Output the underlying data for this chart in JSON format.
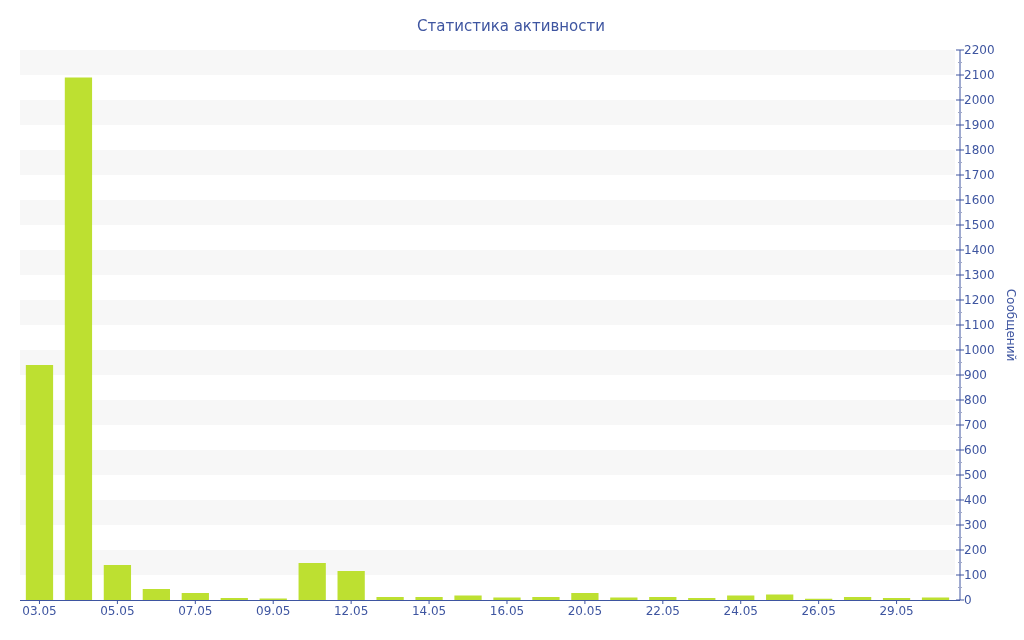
{
  "chart_data": {
    "type": "bar",
    "title": "Статистика активности",
    "ylabel": "Сообщений",
    "categories": [
      "03.05",
      null,
      "05.05",
      null,
      "07.05",
      null,
      "09.05",
      null,
      "12.05",
      null,
      "14.05",
      null,
      "16.05",
      null,
      "20.05",
      null,
      "22.05",
      null,
      "24.05",
      null,
      "26.05",
      null,
      "29.05",
      null
    ],
    "values": [
      940,
      2090,
      140,
      44,
      28,
      8,
      6,
      148,
      116,
      12,
      12,
      18,
      10,
      12,
      28,
      10,
      12,
      8,
      18,
      22,
      5,
      12,
      8,
      10
    ],
    "color": "#bde031",
    "ylim": [
      0,
      2200
    ],
    "yticks": [
      0,
      100,
      200,
      300,
      400,
      500,
      600,
      700,
      800,
      900,
      1000,
      1100,
      1200,
      1300,
      1400,
      1500,
      1600,
      1700,
      1800,
      1900,
      2000,
      2100,
      2200
    ],
    "bands": [
      {
        "axis": "y",
        "from": 100,
        "to": 200,
        "color": "#f7f7f7"
      },
      {
        "axis": "y",
        "from": 300,
        "to": 400,
        "color": "#f7f7f7"
      },
      {
        "axis": "y",
        "from": 500,
        "to": 600,
        "color": "#f7f7f7"
      },
      {
        "axis": "y",
        "from": 700,
        "to": 800,
        "color": "#f7f7f7"
      },
      {
        "axis": "y",
        "from": 900,
        "to": 1000,
        "color": "#f7f7f7"
      },
      {
        "axis": "y",
        "from": 1100,
        "to": 1200,
        "color": "#f7f7f7"
      },
      {
        "axis": "y",
        "from": 1300,
        "to": 1400,
        "color": "#f7f7f7"
      },
      {
        "axis": "y",
        "from": 1500,
        "to": 1600,
        "color": "#f7f7f7"
      },
      {
        "axis": "y",
        "from": 1700,
        "to": 1800,
        "color": "#f7f7f7"
      },
      {
        "axis": "y",
        "from": 1900,
        "to": 2000,
        "color": "#f7f7f7"
      },
      {
        "axis": "y",
        "from": 2100,
        "to": 2200,
        "color": "#f7f7f7"
      }
    ]
  }
}
